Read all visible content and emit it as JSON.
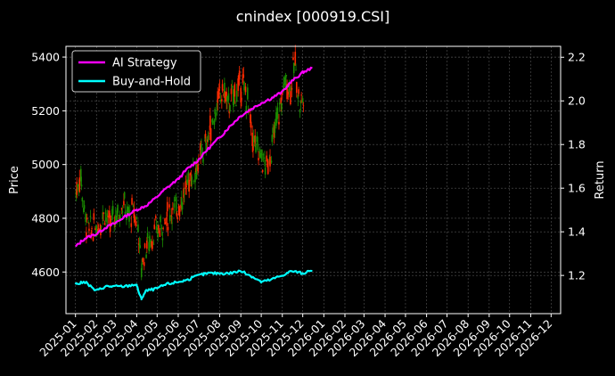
{
  "chart_data": {
    "type": "line",
    "title": "cnindex [000919.CSI]",
    "ylabel_left": "Price",
    "ylabel_right": "Return",
    "xlim": [
      "2024-12-18",
      "2026-12-15"
    ],
    "ylim_left": [
      4445,
      5440
    ],
    "ylim_right": [
      1.025,
      2.25
    ],
    "x_ticks": [
      "2025-01",
      "2025-02",
      "2025-03",
      "2025-04",
      "2025-05",
      "2025-06",
      "2025-07",
      "2025-08",
      "2025-09",
      "2025-10",
      "2025-11",
      "2025-12",
      "2026-01",
      "2026-02",
      "2026-03",
      "2026-04",
      "2026-05",
      "2026-06",
      "2026-07",
      "2026-08",
      "2026-09",
      "2026-10",
      "2026-11",
      "2026-12"
    ],
    "y_ticks_left": [
      4600,
      4800,
      5000,
      5200,
      5400
    ],
    "y_ticks_right": [
      1.2,
      1.4,
      1.6,
      1.8,
      2.0,
      2.2
    ],
    "grid": true,
    "legend_position": "top-left",
    "colors": {
      "background": "#000000",
      "ai_strategy": "#ff00ff",
      "buy_and_hold": "#00ffff",
      "candle_up": "#ff2a00",
      "candle_down": "#1a8c00",
      "grid": "#555555"
    },
    "price_series": {
      "name": "Price",
      "type": "candlestick",
      "x": [
        "2025-01-02",
        "2025-01-09",
        "2025-01-16",
        "2025-01-23",
        "2025-02-06",
        "2025-02-13",
        "2025-02-20",
        "2025-02-27",
        "2025-03-06",
        "2025-03-13",
        "2025-03-20",
        "2025-03-27",
        "2025-04-03",
        "2025-04-08",
        "2025-04-15",
        "2025-04-22",
        "2025-04-29",
        "2025-05-08",
        "2025-05-15",
        "2025-05-22",
        "2025-05-29",
        "2025-06-05",
        "2025-06-12",
        "2025-06-19",
        "2025-06-26",
        "2025-07-03",
        "2025-07-10",
        "2025-07-17",
        "2025-07-24",
        "2025-07-31",
        "2025-08-07",
        "2025-08-14",
        "2025-08-21",
        "2025-08-28",
        "2025-09-04",
        "2025-09-11",
        "2025-09-18",
        "2025-09-25",
        "2025-10-09",
        "2025-10-16",
        "2025-10-23",
        "2025-10-30",
        "2025-11-06",
        "2025-11-13",
        "2025-11-20",
        "2025-11-27",
        "2025-12-04"
      ],
      "close": [
        4900,
        4960,
        4790,
        4750,
        4780,
        4830,
        4770,
        4810,
        4820,
        4860,
        4800,
        4830,
        4780,
        4620,
        4700,
        4720,
        4750,
        4770,
        4800,
        4830,
        4830,
        4860,
        4900,
        4960,
        4980,
        5020,
        5060,
        5120,
        5180,
        5240,
        5280,
        5220,
        5250,
        5280,
        5300,
        5240,
        5100,
        5060,
        4990,
        5050,
        5150,
        5220,
        5320,
        5280,
        5380,
        5220,
        5260
      ]
    },
    "series": [
      {
        "name": "AI Strategy",
        "x": [
          "2025-01-01",
          "2025-01-15",
          "2025-02-01",
          "2025-02-15",
          "2025-03-01",
          "2025-03-15",
          "2025-04-01",
          "2025-04-15",
          "2025-05-01",
          "2025-05-15",
          "2025-06-01",
          "2025-06-15",
          "2025-07-01",
          "2025-07-15",
          "2025-08-01",
          "2025-08-15",
          "2025-09-01",
          "2025-09-15",
          "2025-10-01",
          "2025-10-15",
          "2025-11-01",
          "2025-11-15",
          "2025-12-01",
          "2025-12-15"
        ],
        "values": [
          1.33,
          1.37,
          1.39,
          1.42,
          1.44,
          1.47,
          1.5,
          1.52,
          1.56,
          1.6,
          1.64,
          1.69,
          1.73,
          1.78,
          1.83,
          1.88,
          1.93,
          1.96,
          1.99,
          2.01,
          2.04,
          2.09,
          2.13,
          2.15
        ]
      },
      {
        "name": "Buy-and-Hold",
        "x": [
          "2025-01-01",
          "2025-01-15",
          "2025-02-01",
          "2025-02-15",
          "2025-03-01",
          "2025-03-15",
          "2025-04-01",
          "2025-04-08",
          "2025-04-15",
          "2025-05-01",
          "2025-05-15",
          "2025-06-01",
          "2025-06-15",
          "2025-07-01",
          "2025-07-15",
          "2025-08-01",
          "2025-08-15",
          "2025-09-01",
          "2025-09-15",
          "2025-10-01",
          "2025-10-15",
          "2025-11-01",
          "2025-11-15",
          "2025-12-01",
          "2025-12-15"
        ],
        "values": [
          1.16,
          1.17,
          1.13,
          1.15,
          1.15,
          1.15,
          1.16,
          1.09,
          1.13,
          1.14,
          1.16,
          1.17,
          1.18,
          1.2,
          1.21,
          1.21,
          1.21,
          1.22,
          1.2,
          1.17,
          1.18,
          1.2,
          1.22,
          1.21,
          1.22
        ]
      }
    ]
  }
}
